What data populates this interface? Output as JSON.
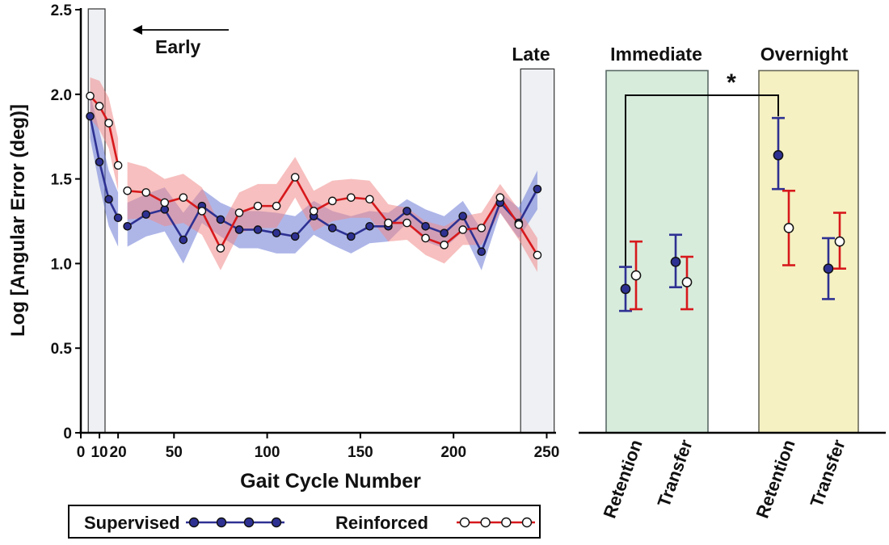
{
  "chart_data": [
    {
      "type": "line",
      "ylabel": "Log [Angular Error (deg)]",
      "xlabel": "Gait Cycle Number",
      "xlim": [
        0,
        255
      ],
      "ylim": [
        0,
        2.5
      ],
      "x_ticks": [
        {
          "value": 0,
          "label": "0"
        },
        {
          "value": 10,
          "label": "10"
        },
        {
          "value": 20,
          "label": "20"
        },
        {
          "value": 50,
          "label": "50"
        },
        {
          "value": 100,
          "label": "100"
        },
        {
          "value": 150,
          "label": "150"
        },
        {
          "value": 200,
          "label": "200"
        },
        {
          "value": 250,
          "label": "250"
        }
      ],
      "y_ticks": [
        {
          "value": 0,
          "label": "0"
        },
        {
          "value": 0.5,
          "label": "0.5"
        },
        {
          "value": 1.0,
          "label": "1.0"
        },
        {
          "value": 1.5,
          "label": "1.5"
        },
        {
          "value": 2.0,
          "label": "2.0"
        },
        {
          "value": 2.5,
          "label": "2.5"
        }
      ],
      "regions": [
        {
          "name": "Early",
          "x_range": [
            4,
            13
          ],
          "label": "Early"
        },
        {
          "name": "Late",
          "x_range": [
            236,
            254
          ],
          "label": "Late"
        }
      ],
      "series": [
        {
          "name": "Supervised",
          "color": "#2e3192",
          "band_color": "#6b7ad6",
          "marker": "filled",
          "segments": [
            {
              "x": [
                5,
                10,
                15,
                20
              ],
              "y": [
                1.87,
                1.6,
                1.38,
                1.27
              ],
              "upper": [
                2.0,
                1.78,
                1.55,
                1.42
              ],
              "lower": [
                1.74,
                1.46,
                1.22,
                1.1
              ]
            },
            {
              "x": [
                25,
                35,
                45,
                55,
                65,
                75,
                85,
                95,
                105,
                115,
                125,
                135,
                145,
                155,
                165,
                175,
                185,
                195,
                205,
                215,
                225,
                235,
                245
              ],
              "y": [
                1.22,
                1.29,
                1.32,
                1.14,
                1.34,
                1.26,
                1.2,
                1.2,
                1.18,
                1.16,
                1.28,
                1.21,
                1.16,
                1.22,
                1.22,
                1.31,
                1.22,
                1.18,
                1.28,
                1.07,
                1.36,
                1.24,
                1.44
              ],
              "upper": [
                1.36,
                1.41,
                1.45,
                1.3,
                1.44,
                1.36,
                1.31,
                1.31,
                1.3,
                1.28,
                1.37,
                1.31,
                1.28,
                1.31,
                1.3,
                1.38,
                1.32,
                1.28,
                1.37,
                1.2,
                1.42,
                1.33,
                1.55
              ],
              "lower": [
                1.1,
                1.16,
                1.19,
                1.0,
                1.24,
                1.16,
                1.09,
                1.09,
                1.06,
                1.06,
                1.17,
                1.11,
                1.06,
                1.12,
                1.13,
                1.24,
                1.13,
                1.09,
                1.19,
                0.96,
                1.3,
                1.15,
                1.32
              ]
            }
          ]
        },
        {
          "name": "Reinforced",
          "color": "#d7191c",
          "band_color": "#f08a8a",
          "marker": "open",
          "segments": [
            {
              "x": [
                5,
                10,
                15,
                20
              ],
              "y": [
                1.99,
                1.93,
                1.83,
                1.58
              ],
              "upper": [
                2.1,
                2.08,
                1.98,
                1.74
              ],
              "lower": [
                1.86,
                1.79,
                1.68,
                1.43
              ]
            },
            {
              "x": [
                25,
                35,
                45,
                55,
                65,
                75,
                85,
                95,
                105,
                115,
                125,
                135,
                145,
                155,
                165,
                175,
                185,
                195,
                205,
                215,
                225,
                235,
                245
              ],
              "y": [
                1.43,
                1.42,
                1.36,
                1.39,
                1.31,
                1.09,
                1.3,
                1.34,
                1.34,
                1.51,
                1.31,
                1.37,
                1.39,
                1.38,
                1.24,
                1.24,
                1.15,
                1.11,
                1.2,
                1.21,
                1.39,
                1.23,
                1.05
              ],
              "upper": [
                1.6,
                1.57,
                1.5,
                1.53,
                1.45,
                1.22,
                1.42,
                1.47,
                1.47,
                1.63,
                1.43,
                1.49,
                1.5,
                1.49,
                1.35,
                1.33,
                1.25,
                1.22,
                1.28,
                1.3,
                1.47,
                1.32,
                1.15
              ],
              "lower": [
                1.26,
                1.27,
                1.22,
                1.24,
                1.17,
                0.96,
                1.18,
                1.21,
                1.21,
                1.39,
                1.19,
                1.25,
                1.27,
                1.27,
                1.13,
                1.14,
                1.05,
                1.0,
                1.11,
                1.11,
                1.3,
                1.14,
                0.95
              ]
            }
          ]
        }
      ]
    },
    {
      "type": "scatter",
      "ylim": [
        0,
        2.5
      ],
      "groups": [
        {
          "name": "Immediate",
          "label": "Immediate",
          "color": "#d8ecdc"
        },
        {
          "name": "Overnight",
          "label": "Overnight",
          "color": "#f5f1c2"
        }
      ],
      "categories": [
        "Retention",
        "Transfer",
        "Retention",
        "Transfer"
      ],
      "series": [
        {
          "name": "Supervised",
          "color": "#2e3192",
          "marker": "filled",
          "values": [
            0.85,
            1.01,
            1.64,
            0.97
          ],
          "err_low": [
            0.72,
            0.86,
            1.44,
            0.79
          ],
          "err_high": [
            0.98,
            1.17,
            1.86,
            1.15
          ]
        },
        {
          "name": "Reinforced",
          "color": "#d7191c",
          "marker": "open",
          "values": [
            0.93,
            0.89,
            1.21,
            1.13
          ],
          "err_low": [
            0.73,
            0.73,
            0.99,
            0.97
          ],
          "err_high": [
            1.13,
            1.04,
            1.43,
            1.3
          ]
        }
      ],
      "significance": {
        "between": [
          "Immediate Retention",
          "Overnight Retention"
        ],
        "label": "*"
      }
    }
  ],
  "legend": {
    "items": [
      {
        "label": "Supervised",
        "color": "#2e3192",
        "marker": "filled"
      },
      {
        "label": "Reinforced",
        "color": "#d7191c",
        "marker": "open"
      }
    ]
  }
}
